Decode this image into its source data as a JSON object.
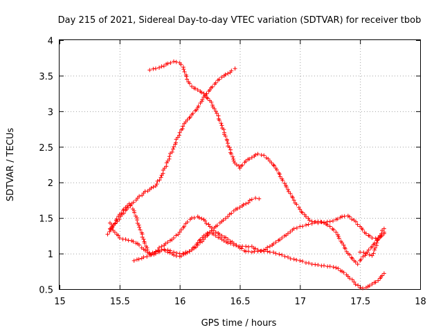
{
  "chart_data": {
    "type": "scatter",
    "title": "Day 215 of 2021, Sidereal Day-to-day VTEC variation (SDTVAR) for receiver tbob",
    "xlabel": "GPS time / hours",
    "ylabel": "SDTVAR / TECUs",
    "xlim": [
      15,
      18
    ],
    "ylim": [
      0.5,
      4
    ],
    "xticks": [
      15,
      15.5,
      16,
      16.5,
      17,
      17.5,
      18
    ],
    "xtick_labels": [
      "15",
      "15.5",
      "16",
      "16.5",
      "17",
      "17.5",
      "18"
    ],
    "yticks": [
      0.5,
      1,
      1.5,
      2,
      2.5,
      3,
      3.5,
      4
    ],
    "ytick_labels": [
      "0.5",
      "1",
      "1.5",
      "2",
      "2.5",
      "3",
      "3.5",
      "4"
    ],
    "grid": true,
    "marker": "+",
    "color": "#ff0000",
    "series": [
      {
        "name": "track-a",
        "points": [
          [
            15.4,
            1.27
          ],
          [
            15.45,
            1.4
          ],
          [
            15.5,
            1.55
          ],
          [
            15.55,
            1.65
          ],
          [
            15.58,
            1.7
          ],
          [
            15.62,
            1.6
          ],
          [
            15.66,
            1.4
          ],
          [
            15.7,
            1.2
          ],
          [
            15.73,
            1.05
          ],
          [
            15.76,
            0.98
          ],
          [
            15.8,
            1.0
          ],
          [
            15.85,
            1.05
          ],
          [
            15.9,
            1.02
          ],
          [
            15.95,
            0.98
          ],
          [
            16.0,
            0.96
          ],
          [
            16.05,
            1.0
          ],
          [
            16.1,
            1.05
          ],
          [
            16.15,
            1.15
          ],
          [
            16.2,
            1.25
          ],
          [
            16.25,
            1.3
          ],
          [
            16.3,
            1.25
          ],
          [
            16.35,
            1.2
          ],
          [
            16.4,
            1.15
          ],
          [
            16.45,
            1.12
          ],
          [
            16.5,
            1.1
          ],
          [
            16.55,
            1.1
          ],
          [
            16.6,
            1.1
          ],
          [
            16.65,
            1.05
          ],
          [
            16.7,
            1.03
          ],
          [
            16.75,
            1.02
          ],
          [
            16.8,
            1.0
          ],
          [
            16.85,
            0.98
          ],
          [
            16.9,
            0.95
          ],
          [
            16.95,
            0.92
          ],
          [
            17.0,
            0.9
          ],
          [
            17.05,
            0.87
          ],
          [
            17.1,
            0.85
          ],
          [
            17.15,
            0.84
          ],
          [
            17.2,
            0.83
          ],
          [
            17.25,
            0.82
          ],
          [
            17.3,
            0.8
          ],
          [
            17.35,
            0.75
          ],
          [
            17.4,
            0.68
          ],
          [
            17.45,
            0.6
          ],
          [
            17.5,
            0.52
          ],
          [
            17.55,
            0.52
          ],
          [
            17.6,
            0.57
          ],
          [
            17.65,
            0.62
          ],
          [
            17.7,
            0.72
          ]
        ]
      },
      {
        "name": "track-b",
        "points": [
          [
            15.42,
            1.43
          ],
          [
            15.46,
            1.3
          ],
          [
            15.5,
            1.22
          ],
          [
            15.55,
            1.2
          ],
          [
            15.6,
            1.18
          ],
          [
            15.65,
            1.14
          ],
          [
            15.7,
            1.06
          ],
          [
            15.75,
            1.0
          ],
          [
            15.8,
            1.03
          ],
          [
            15.85,
            1.1
          ],
          [
            15.9,
            1.16
          ],
          [
            15.95,
            1.22
          ],
          [
            16.0,
            1.3
          ],
          [
            16.05,
            1.42
          ],
          [
            16.1,
            1.5
          ],
          [
            16.15,
            1.52
          ],
          [
            16.2,
            1.48
          ],
          [
            16.25,
            1.38
          ],
          [
            16.3,
            1.3
          ],
          [
            16.35,
            1.25
          ],
          [
            16.4,
            1.2
          ],
          [
            16.45,
            1.14
          ],
          [
            16.5,
            1.08
          ],
          [
            16.55,
            1.03
          ],
          [
            16.6,
            1.02
          ],
          [
            16.65,
            1.03
          ],
          [
            16.7,
            1.05
          ],
          [
            16.75,
            1.1
          ],
          [
            16.8,
            1.16
          ],
          [
            16.85,
            1.22
          ],
          [
            16.9,
            1.28
          ],
          [
            16.95,
            1.35
          ],
          [
            17.0,
            1.38
          ],
          [
            17.05,
            1.4
          ],
          [
            17.1,
            1.42
          ],
          [
            17.15,
            1.45
          ],
          [
            17.2,
            1.43
          ],
          [
            17.25,
            1.38
          ],
          [
            17.3,
            1.3
          ],
          [
            17.35,
            1.15
          ],
          [
            17.4,
            1.0
          ],
          [
            17.45,
            0.9
          ],
          [
            17.48,
            0.85
          ],
          [
            17.5,
            0.9
          ],
          [
            17.55,
            1.0
          ],
          [
            17.6,
            1.1
          ],
          [
            17.65,
            1.2
          ],
          [
            17.7,
            1.28
          ]
        ]
      },
      {
        "name": "track-c",
        "points": [
          [
            15.42,
            1.35
          ],
          [
            15.48,
            1.45
          ],
          [
            15.52,
            1.55
          ],
          [
            15.6,
            1.7
          ],
          [
            15.65,
            1.78
          ],
          [
            15.7,
            1.85
          ],
          [
            15.75,
            1.9
          ],
          [
            15.8,
            1.95
          ],
          [
            15.85,
            2.1
          ],
          [
            15.9,
            2.3
          ],
          [
            15.95,
            2.5
          ],
          [
            16.0,
            2.7
          ],
          [
            16.05,
            2.85
          ],
          [
            16.1,
            2.95
          ],
          [
            16.15,
            3.05
          ],
          [
            16.2,
            3.2
          ],
          [
            16.25,
            3.3
          ],
          [
            16.3,
            3.4
          ],
          [
            16.35,
            3.48
          ],
          [
            16.4,
            3.53
          ],
          [
            16.43,
            3.57
          ],
          [
            16.46,
            3.6
          ]
        ]
      },
      {
        "name": "track-d",
        "points": [
          [
            15.75,
            3.58
          ],
          [
            15.8,
            3.6
          ],
          [
            15.85,
            3.63
          ],
          [
            15.9,
            3.67
          ],
          [
            15.95,
            3.7
          ],
          [
            16.0,
            3.68
          ],
          [
            16.03,
            3.62
          ],
          [
            16.06,
            3.45
          ],
          [
            16.1,
            3.35
          ],
          [
            16.15,
            3.3
          ],
          [
            16.2,
            3.25
          ],
          [
            16.25,
            3.15
          ],
          [
            16.3,
            3.0
          ],
          [
            16.35,
            2.8
          ],
          [
            16.4,
            2.55
          ],
          [
            16.45,
            2.3
          ],
          [
            16.5,
            2.2
          ],
          [
            16.55,
            2.3
          ],
          [
            16.6,
            2.35
          ],
          [
            16.65,
            2.4
          ],
          [
            16.7,
            2.38
          ],
          [
            16.75,
            2.3
          ],
          [
            16.8,
            2.2
          ],
          [
            16.85,
            2.05
          ],
          [
            16.9,
            1.9
          ],
          [
            16.95,
            1.75
          ],
          [
            17.0,
            1.62
          ],
          [
            17.05,
            1.52
          ],
          [
            17.1,
            1.45
          ],
          [
            17.15,
            1.43
          ],
          [
            17.2,
            1.44
          ],
          [
            17.25,
            1.45
          ],
          [
            17.3,
            1.48
          ],
          [
            17.35,
            1.52
          ],
          [
            17.4,
            1.53
          ],
          [
            17.45,
            1.47
          ],
          [
            17.5,
            1.38
          ],
          [
            17.55,
            1.28
          ],
          [
            17.6,
            1.22
          ],
          [
            17.65,
            1.22
          ],
          [
            17.7,
            1.35
          ]
        ]
      },
      {
        "name": "track-e",
        "points": [
          [
            15.62,
            0.9
          ],
          [
            15.66,
            0.92
          ],
          [
            15.7,
            0.95
          ],
          [
            15.75,
            0.98
          ],
          [
            15.8,
            1.02
          ],
          [
            15.85,
            1.05
          ],
          [
            15.9,
            1.05
          ],
          [
            15.95,
            1.02
          ],
          [
            16.0,
            1.0
          ],
          [
            16.05,
            1.02
          ],
          [
            16.1,
            1.05
          ],
          [
            16.15,
            1.12
          ],
          [
            16.2,
            1.2
          ],
          [
            16.25,
            1.3
          ],
          [
            16.3,
            1.38
          ],
          [
            16.35,
            1.45
          ],
          [
            16.4,
            1.52
          ],
          [
            16.45,
            1.6
          ],
          [
            16.5,
            1.65
          ],
          [
            16.55,
            1.7
          ],
          [
            16.6,
            1.76
          ],
          [
            16.63,
            1.78
          ],
          [
            16.66,
            1.77
          ]
        ]
      },
      {
        "name": "track-f",
        "points": [
          [
            17.5,
            1.02
          ],
          [
            17.55,
            1.0
          ],
          [
            17.6,
            0.97
          ],
          [
            17.62,
            1.05
          ],
          [
            17.64,
            1.15
          ],
          [
            17.66,
            1.22
          ],
          [
            17.68,
            1.26
          ],
          [
            17.7,
            1.3
          ]
        ]
      }
    ]
  }
}
